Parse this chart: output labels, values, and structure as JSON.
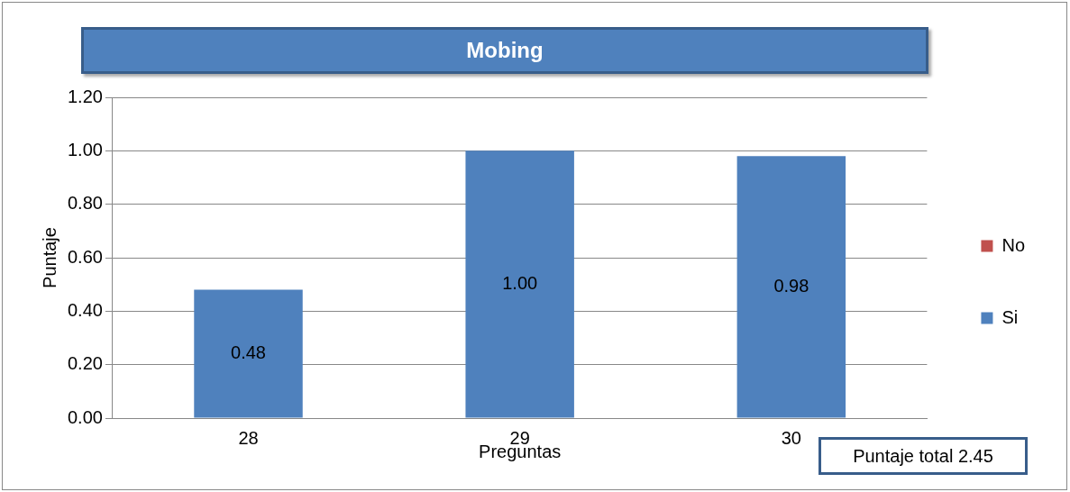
{
  "chart_data": {
    "type": "bar",
    "title": "Mobing",
    "xlabel": "Preguntas",
    "ylabel": "Puntaje",
    "categories": [
      "28",
      "29",
      "30"
    ],
    "stacked": true,
    "series": [
      {
        "name": "Si",
        "color": "#4f81bd",
        "values": [
          0.48,
          1.0,
          0.98
        ],
        "value_labels": [
          "0.48",
          "1.00",
          "0.98"
        ]
      },
      {
        "name": "No",
        "color": "#c0504d",
        "values": [
          0,
          0,
          0
        ]
      }
    ],
    "ylim": [
      0,
      1.2
    ],
    "yticks": [
      {
        "value": 0,
        "label": "0.00"
      },
      {
        "value": 0.2,
        "label": "0.20"
      },
      {
        "value": 0.4,
        "label": "0.40"
      },
      {
        "value": 0.6,
        "label": "0.60"
      },
      {
        "value": 0.8,
        "label": "0.80"
      },
      {
        "value": 1,
        "label": "1.00"
      },
      {
        "value": 1.2,
        "label": "1.20"
      }
    ],
    "grid": "y",
    "legend": "right",
    "annotations": [
      "Puntaje total 2.45"
    ]
  }
}
